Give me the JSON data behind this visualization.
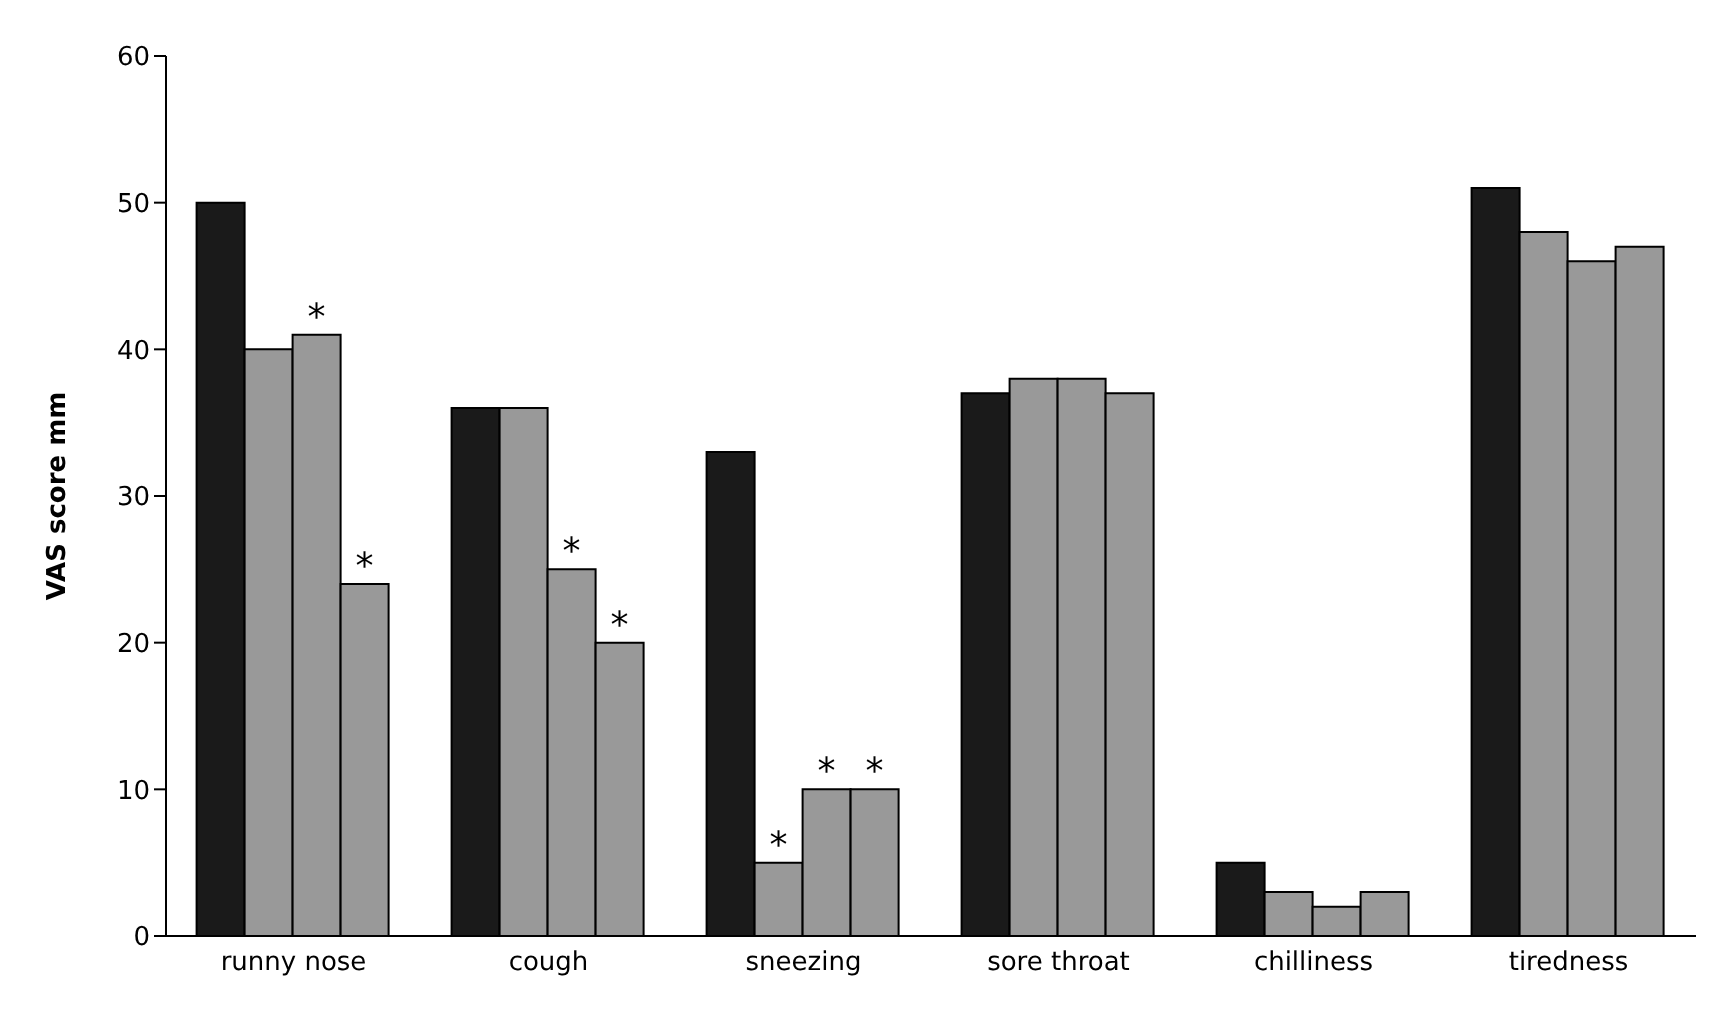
{
  "chart_data": {
    "type": "bar",
    "ylabel": "VAS score mm",
    "categories": [
      "runny nose",
      "cough",
      "sneezing",
      "sore throat",
      "chilliness",
      "tiredness"
    ],
    "series": [
      {
        "color": "#1a1a1a",
        "values": [
          50,
          36,
          33,
          37,
          5,
          51
        ]
      },
      {
        "color": "#999999",
        "values": [
          40,
          36,
          5,
          38,
          3,
          48
        ]
      },
      {
        "color": "#999999",
        "values": [
          41,
          25,
          10,
          38,
          2,
          46
        ]
      },
      {
        "color": "#999999",
        "values": [
          24,
          20,
          10,
          37,
          3,
          47
        ]
      }
    ],
    "ylim": [
      0,
      60
    ],
    "yticks": [
      0,
      10,
      20,
      30,
      40,
      50,
      60
    ],
    "grid": false,
    "legend": false,
    "annotations": [
      {
        "text": "*",
        "x": "runny nose",
        "y": 41
      },
      {
        "text": "*",
        "x": "runny nose",
        "y": 24
      },
      {
        "text": "*",
        "x": "cough",
        "y": 25
      },
      {
        "text": "*",
        "x": "cough",
        "y": 20
      },
      {
        "text": "*",
        "x": "sneezing",
        "y": 5
      },
      {
        "text": "*",
        "x": "sneezing",
        "y": 10
      }
    ]
  }
}
